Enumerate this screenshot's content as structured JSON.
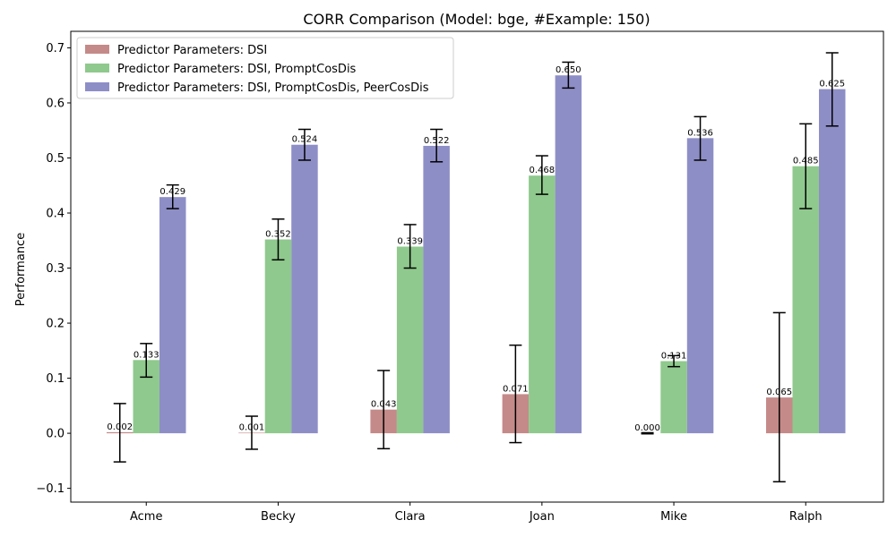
{
  "chart_data": {
    "type": "bar",
    "title": "CORR Comparison (Model: bge, #Example: 150)",
    "xlabel": "",
    "ylabel": "Performance",
    "ylim": [
      -0.125,
      0.73
    ],
    "yticks": [
      -0.1,
      0.0,
      0.1,
      0.2,
      0.3,
      0.4,
      0.5,
      0.6,
      0.7
    ],
    "ytick_labels": [
      "−0.1",
      "0.0",
      "0.1",
      "0.2",
      "0.3",
      "0.4",
      "0.5",
      "0.6",
      "0.7"
    ],
    "categories": [
      "Acme",
      "Becky",
      "Clara",
      "Joan",
      "Mike",
      "Ralph"
    ],
    "legend_position": "top-left",
    "grid": false,
    "series": [
      {
        "name": "Predictor Parameters: DSI",
        "color": "#c48a89",
        "values": [
          0.002,
          0.001,
          0.043,
          0.071,
          0.0,
          0.065
        ],
        "labels": [
          "0.002",
          "0.001",
          "0.043",
          "0.071",
          "0.000",
          "0.065"
        ],
        "err_low": [
          -0.052,
          -0.029,
          -0.028,
          -0.017,
          -0.001,
          -0.088
        ],
        "err_high": [
          0.054,
          0.031,
          0.114,
          0.16,
          0.001,
          0.219
        ]
      },
      {
        "name": "Predictor Parameters: DSI, PromptCosDis",
        "color": "#8fc98d",
        "values": [
          0.133,
          0.352,
          0.339,
          0.468,
          0.131,
          0.485
        ],
        "labels": [
          "0.133",
          "0.352",
          "0.339",
          "0.468",
          "0.131",
          "0.485"
        ],
        "err_low": [
          0.102,
          0.315,
          0.3,
          0.434,
          0.121,
          0.408
        ],
        "err_high": [
          0.163,
          0.389,
          0.379,
          0.504,
          0.141,
          0.562
        ]
      },
      {
        "name": "Predictor Parameters: DSI, PromptCosDis, PeerCosDis",
        "color": "#8e8ec7",
        "values": [
          0.429,
          0.524,
          0.522,
          0.65,
          0.536,
          0.625
        ],
        "labels": [
          "0.429",
          "0.524",
          "0.522",
          "0.650",
          "0.536",
          "0.625"
        ],
        "err_low": [
          0.408,
          0.496,
          0.493,
          0.627,
          0.496,
          0.558
        ],
        "err_high": [
          0.451,
          0.552,
          0.552,
          0.674,
          0.575,
          0.691
        ]
      }
    ]
  }
}
